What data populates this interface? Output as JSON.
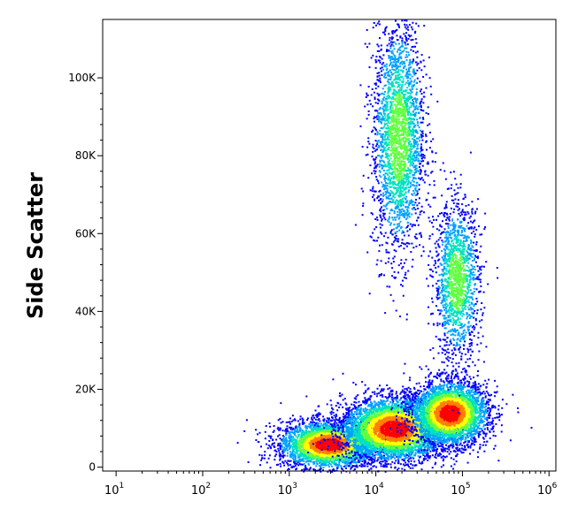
{
  "chart_data": {
    "type": "scatter",
    "title": "",
    "xlabel": "",
    "ylabel": "Side Scatter",
    "x_scale": "log",
    "xlim": [
      7,
      1200000
    ],
    "ylim": [
      -1000,
      115000
    ],
    "grid": false,
    "legend": "none",
    "y_ticks": [
      {
        "value": 0,
        "label": "0"
      },
      {
        "value": 20000,
        "label": "20K"
      },
      {
        "value": 40000,
        "label": "40K"
      },
      {
        "value": 60000,
        "label": "60K"
      },
      {
        "value": 80000,
        "label": "80K"
      },
      {
        "value": 100000,
        "label": "100K"
      }
    ],
    "x_ticks": [
      {
        "value": 10,
        "base": "10",
        "exp": "1"
      },
      {
        "value": 100,
        "base": "10",
        "exp": "2"
      },
      {
        "value": 1000,
        "base": "10",
        "exp": "3"
      },
      {
        "value": 10000,
        "base": "10",
        "exp": "4"
      },
      {
        "value": 100000,
        "base": "10",
        "exp": "5"
      },
      {
        "value": 1000000,
        "base": "10",
        "exp": "6"
      }
    ],
    "populations": [
      {
        "center_x": 2800,
        "center_y": 6000,
        "spread_log_x": 0.28,
        "spread_y": 3000,
        "count": 3500,
        "peak_density": "high"
      },
      {
        "center_x": 16000,
        "center_y": 10000,
        "spread_log_x": 0.3,
        "spread_y": 4000,
        "count": 4500,
        "peak_density": "high"
      },
      {
        "center_x": 70000,
        "center_y": 14000,
        "spread_log_x": 0.22,
        "spread_y": 4000,
        "count": 3500,
        "peak_density": "high"
      },
      {
        "center_x": 18000,
        "center_y": 85000,
        "spread_log_x": 0.15,
        "spread_y": 15000,
        "count": 2500,
        "peak_density": "medium"
      },
      {
        "center_x": 85000,
        "center_y": 48000,
        "spread_log_x": 0.13,
        "spread_y": 10000,
        "count": 1500,
        "peak_density": "medium"
      }
    ],
    "density_colors": [
      "#0000ff",
      "#00a0ff",
      "#00e0c0",
      "#60ff40",
      "#ffff00",
      "#ff8000",
      "#ff0000"
    ]
  }
}
